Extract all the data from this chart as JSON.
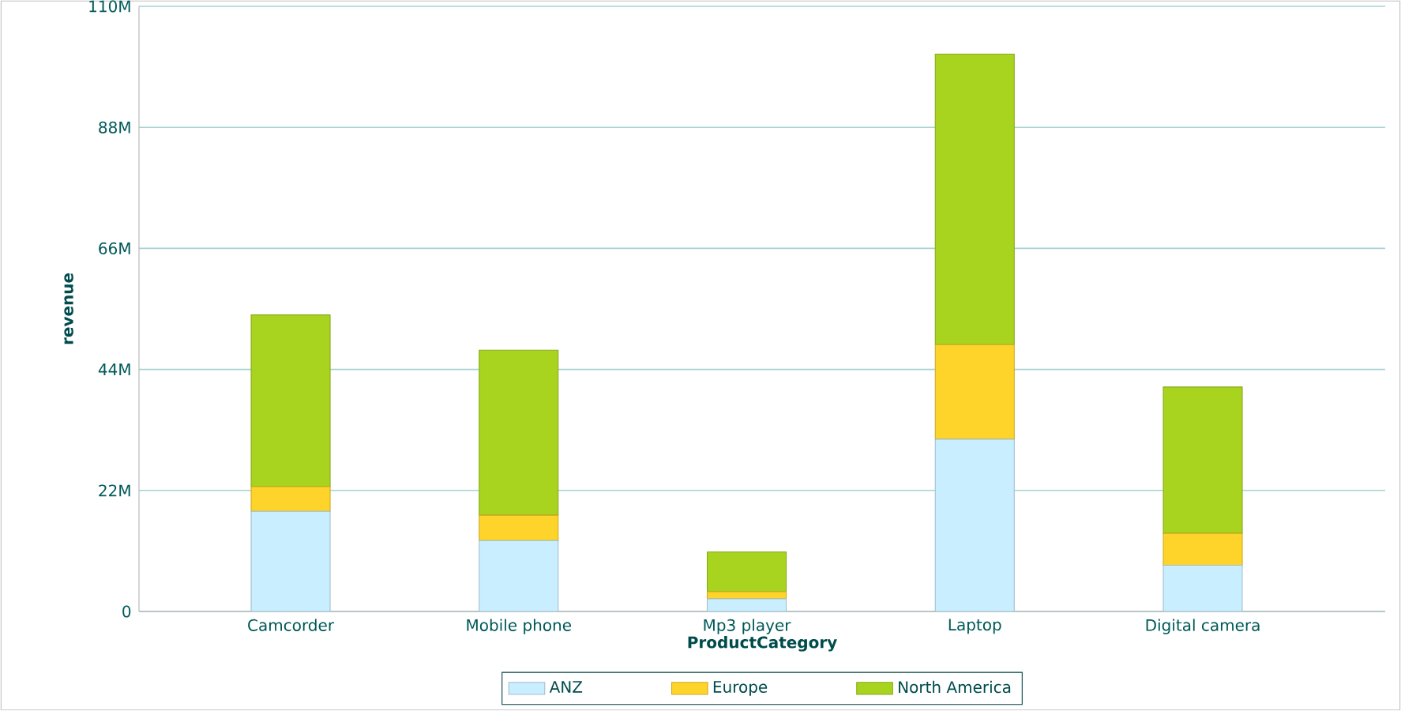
{
  "chart_data": {
    "type": "bar",
    "stacked": true,
    "xlabel": "ProductCategory",
    "ylabel": "revenue",
    "categories": [
      "Camcorder",
      "Mobile phone",
      "Mp3 player",
      "Laptop",
      "Digital camera"
    ],
    "series": [
      {
        "name": "ANZ",
        "color": "#c9eeff",
        "values": [
          18.2,
          12.9,
          2.3,
          31.3,
          8.4
        ]
      },
      {
        "name": "Europe",
        "color": "#ffd42a",
        "values": [
          4.5,
          4.6,
          1.3,
          17.2,
          5.8
        ]
      },
      {
        "name": "North America",
        "color": "#a8d420",
        "values": [
          31.2,
          30.0,
          7.2,
          52.8,
          26.6
        ]
      }
    ],
    "ylim": [
      0,
      110
    ],
    "yticks": [
      0,
      {
        "value": 22,
        "label": "22M"
      },
      {
        "value": 44,
        "label": "44M"
      },
      {
        "value": 66,
        "label": "66M"
      },
      {
        "value": 88,
        "label": "88M"
      },
      {
        "value": 110,
        "label": "110M"
      }
    ],
    "grid": "y",
    "legend": "bottom"
  }
}
